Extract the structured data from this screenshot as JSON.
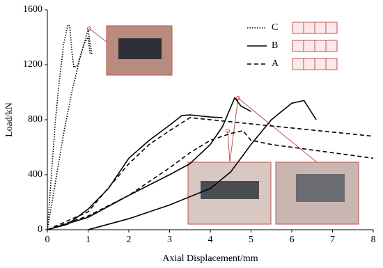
{
  "chart_data": {
    "type": "line",
    "x_label": "Axial Displacement/mm",
    "y_label": "Load/kN",
    "xlim": [
      0,
      8
    ],
    "ylim": [
      0,
      1600
    ],
    "xticks": [
      0,
      1,
      2,
      3,
      4,
      5,
      6,
      7,
      8
    ],
    "yticks": [
      0,
      400,
      800,
      1200,
      1600
    ],
    "series": [
      {
        "name": "C",
        "color": "#000000",
        "style": "dotted",
        "lines": [
          {
            "x": [
              0,
              0.1,
              0.2,
              0.3,
              0.4,
              0.5,
              0.55,
              0.6,
              0.65,
              0.75,
              0.9,
              1.0,
              1.05
            ],
            "values": [
              0,
              400,
              800,
              1100,
              1350,
              1490,
              1480,
              1300,
              1180,
              1200,
              1350,
              1400,
              1280
            ]
          },
          {
            "x": [
              0,
              0.2,
              0.4,
              0.6,
              0.8,
              0.95,
              1.0,
              1.05,
              1.1
            ],
            "values": [
              0,
              350,
              700,
              1000,
              1250,
              1400,
              1460,
              1350,
              1270
            ]
          }
        ]
      },
      {
        "name": "B",
        "color": "#000000",
        "style": "solid",
        "lines": [
          {
            "x": [
              0,
              0.5,
              1,
              1.5,
              2,
              2.5,
              3,
              3.3,
              3.5,
              4,
              4.3
            ],
            "values": [
              0,
              40,
              150,
              300,
              520,
              650,
              760,
              830,
              835,
              820,
              815
            ]
          },
          {
            "x": [
              0,
              1,
              2,
              3,
              3.5,
              4,
              4.3,
              4.6,
              4.75,
              5
            ],
            "values": [
              0,
              90,
              250,
              400,
              480,
              620,
              750,
              960,
              900,
              860
            ]
          },
          {
            "x": [
              1,
              2,
              3,
              4,
              4.5,
              5,
              5.5,
              6,
              6.3,
              6.6
            ],
            "values": [
              0,
              80,
              180,
              300,
              420,
              620,
              800,
              920,
              940,
              800
            ]
          }
        ]
      },
      {
        "name": "A",
        "color": "#000000",
        "style": "dashed",
        "lines": [
          {
            "x": [
              0,
              1,
              2,
              2.5,
              3,
              3.5,
              4,
              5,
              6,
              7,
              8
            ],
            "values": [
              0,
              130,
              480,
              620,
              720,
              815,
              800,
              770,
              740,
              710,
              680
            ]
          },
          {
            "x": [
              0,
              1,
              2,
              3,
              3.5,
              4,
              4.5,
              4.8,
              5,
              5.5,
              6,
              7,
              8
            ],
            "values": [
              0,
              100,
              250,
              450,
              560,
              650,
              700,
              720,
              650,
              620,
              600,
              560,
              520
            ]
          }
        ]
      }
    ]
  }
}
